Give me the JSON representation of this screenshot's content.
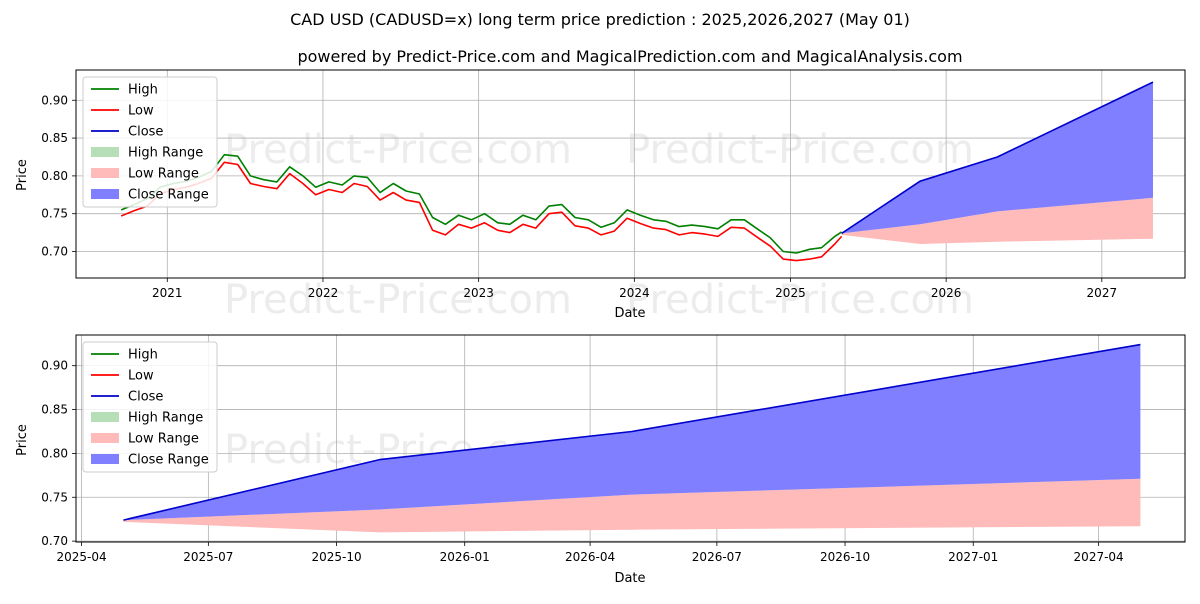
{
  "title": "CAD USD (CADUSD=x) long term price prediction : 2025,2026,2027 (May 01)",
  "subtitle": "powered by Predict-Price.com and MagicalPrediction.com and MagicalAnalysis.com",
  "watermark": "Predict-Price.com",
  "colors": {
    "high": "#008000",
    "low": "#ff0000",
    "close": "#0000cc",
    "high_range": "#b7dfb7",
    "low_range": "#ffbaba",
    "close_range": "#7f7fff",
    "grid": "#b0b0b0",
    "watermark": "#eeeeee"
  },
  "legend_labels": [
    "High",
    "Low",
    "Close",
    "High Range",
    "Low Range",
    "Close Range"
  ],
  "chart_data": [
    {
      "type": "line",
      "xlabel": "Date",
      "ylabel": "Price",
      "x_type": "time",
      "xlim": [
        "2020-06-01",
        "2027-07-15"
      ],
      "ylim": [
        0.665,
        0.94
      ],
      "xticks": [
        "2021-01-01",
        "2022-01-01",
        "2023-01-01",
        "2024-01-01",
        "2025-01-01",
        "2026-01-01",
        "2027-01-01"
      ],
      "xticklabels": [
        "2021",
        "2022",
        "2023",
        "2024",
        "2025",
        "2026",
        "2027"
      ],
      "yticks": [
        0.7,
        0.75,
        0.8,
        0.85,
        0.9
      ],
      "yticklabels": [
        "0.70",
        "0.75",
        "0.80",
        "0.85",
        "0.90"
      ],
      "grid": true,
      "legend_position": "top-left",
      "history": {
        "x": [
          "2020-09-15",
          "2020-10-15",
          "2020-11-15",
          "2020-12-15",
          "2021-01-15",
          "2021-02-15",
          "2021-03-15",
          "2021-04-15",
          "2021-05-15",
          "2021-06-15",
          "2021-07-15",
          "2021-08-15",
          "2021-09-15",
          "2021-10-15",
          "2021-11-15",
          "2021-12-15",
          "2022-01-15",
          "2022-02-15",
          "2022-03-15",
          "2022-04-15",
          "2022-05-15",
          "2022-06-15",
          "2022-07-15",
          "2022-08-15",
          "2022-09-15",
          "2022-10-15",
          "2022-11-15",
          "2022-12-15",
          "2023-01-15",
          "2023-02-15",
          "2023-03-15",
          "2023-04-15",
          "2023-05-15",
          "2023-06-15",
          "2023-07-15",
          "2023-08-15",
          "2023-09-15",
          "2023-10-15",
          "2023-11-15",
          "2023-12-15",
          "2024-01-15",
          "2024-02-15",
          "2024-03-15",
          "2024-04-15",
          "2024-05-15",
          "2024-06-15",
          "2024-07-15",
          "2024-08-15",
          "2024-09-15",
          "2024-10-15",
          "2024-11-15",
          "2024-12-15",
          "2025-01-15",
          "2025-02-15",
          "2025-03-15",
          "2025-04-15",
          "2025-05-01"
        ],
        "high": [
          0.755,
          0.762,
          0.77,
          0.785,
          0.79,
          0.793,
          0.798,
          0.806,
          0.828,
          0.826,
          0.8,
          0.795,
          0.792,
          0.812,
          0.8,
          0.785,
          0.792,
          0.788,
          0.8,
          0.798,
          0.778,
          0.79,
          0.78,
          0.776,
          0.745,
          0.736,
          0.748,
          0.742,
          0.75,
          0.738,
          0.736,
          0.748,
          0.742,
          0.76,
          0.762,
          0.745,
          0.742,
          0.732,
          0.738,
          0.755,
          0.748,
          0.742,
          0.74,
          0.733,
          0.735,
          0.733,
          0.73,
          0.742,
          0.742,
          0.73,
          0.718,
          0.7,
          0.698,
          0.703,
          0.705,
          0.72,
          0.726
        ],
        "low": [
          0.747,
          0.754,
          0.76,
          0.776,
          0.782,
          0.785,
          0.79,
          0.797,
          0.818,
          0.815,
          0.79,
          0.786,
          0.783,
          0.803,
          0.79,
          0.775,
          0.782,
          0.778,
          0.79,
          0.786,
          0.768,
          0.778,
          0.768,
          0.765,
          0.728,
          0.722,
          0.736,
          0.731,
          0.738,
          0.728,
          0.725,
          0.736,
          0.731,
          0.75,
          0.752,
          0.734,
          0.731,
          0.722,
          0.727,
          0.744,
          0.737,
          0.731,
          0.729,
          0.722,
          0.725,
          0.723,
          0.72,
          0.732,
          0.731,
          0.719,
          0.707,
          0.69,
          0.688,
          0.69,
          0.693,
          0.71,
          0.72
        ]
      },
      "forecast": {
        "x": [
          "2025-05-01",
          "2025-11-01",
          "2026-05-01",
          "2027-05-01"
        ],
        "close": [
          0.724,
          0.793,
          0.825,
          0.924
        ],
        "close_range_upper": [
          0.724,
          0.793,
          0.825,
          0.924
        ],
        "close_range_lower": [
          0.724,
          0.736,
          0.753,
          0.771
        ],
        "low_range_upper": [
          0.724,
          0.736,
          0.753,
          0.771
        ],
        "low_range_lower": [
          0.722,
          0.71,
          0.713,
          0.717
        ]
      }
    },
    {
      "type": "line",
      "xlabel": "Date",
      "ylabel": "Price",
      "x_type": "time",
      "xlim": [
        "2025-03-28",
        "2027-06-02"
      ],
      "ylim": [
        0.699,
        0.935
      ],
      "xticks": [
        "2025-04-01",
        "2025-07-01",
        "2025-10-01",
        "2026-01-01",
        "2026-04-01",
        "2026-07-01",
        "2026-10-01",
        "2027-01-01",
        "2027-04-01"
      ],
      "xticklabels": [
        "2025-04",
        "2025-07",
        "2025-10",
        "2026-01",
        "2026-04",
        "2026-07",
        "2026-10",
        "2027-01",
        "2027-04"
      ],
      "yticks": [
        0.7,
        0.75,
        0.8,
        0.85,
        0.9
      ],
      "yticklabels": [
        "0.70",
        "0.75",
        "0.80",
        "0.85",
        "0.90"
      ],
      "grid": true,
      "legend_position": "top-left",
      "forecast": {
        "x": [
          "2025-05-01",
          "2025-11-01",
          "2026-05-01",
          "2027-05-01"
        ],
        "close": [
          0.724,
          0.793,
          0.825,
          0.924
        ],
        "close_range_upper": [
          0.724,
          0.793,
          0.825,
          0.924
        ],
        "close_range_lower": [
          0.724,
          0.736,
          0.753,
          0.771
        ],
        "low_range_upper": [
          0.724,
          0.736,
          0.753,
          0.771
        ],
        "low_range_lower": [
          0.722,
          0.71,
          0.713,
          0.717
        ]
      }
    }
  ]
}
